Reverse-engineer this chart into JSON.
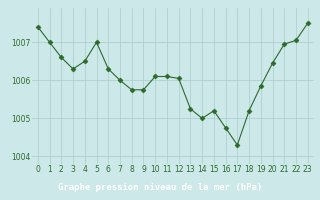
{
  "x": [
    0,
    1,
    2,
    3,
    4,
    5,
    6,
    7,
    8,
    9,
    10,
    11,
    12,
    13,
    14,
    15,
    16,
    17,
    18,
    19,
    20,
    21,
    22,
    23
  ],
  "y": [
    1007.4,
    1007.0,
    1006.6,
    1006.3,
    1006.5,
    1007.0,
    1006.3,
    1006.0,
    1005.75,
    1005.75,
    1006.1,
    1006.1,
    1006.05,
    1005.25,
    1005.0,
    1005.2,
    1004.75,
    1004.3,
    1005.2,
    1005.85,
    1006.45,
    1006.95,
    1007.05,
    1007.5
  ],
  "line_color": "#2d6a2d",
  "marker": "D",
  "marker_size": 2.5,
  "bg_color": "#cce8e8",
  "grid_color": "#aacccc",
  "xlabel": "Graphe pression niveau de la mer (hPa)",
  "xlabel_bg": "#2d6a2d",
  "ylim": [
    1003.8,
    1007.9
  ],
  "yticks": [
    1004,
    1005,
    1006,
    1007
  ],
  "xticks": [
    0,
    1,
    2,
    3,
    4,
    5,
    6,
    7,
    8,
    9,
    10,
    11,
    12,
    13,
    14,
    15,
    16,
    17,
    18,
    19,
    20,
    21,
    22,
    23
  ],
  "tick_fontsize": 5.5,
  "label_fontsize": 6.5
}
